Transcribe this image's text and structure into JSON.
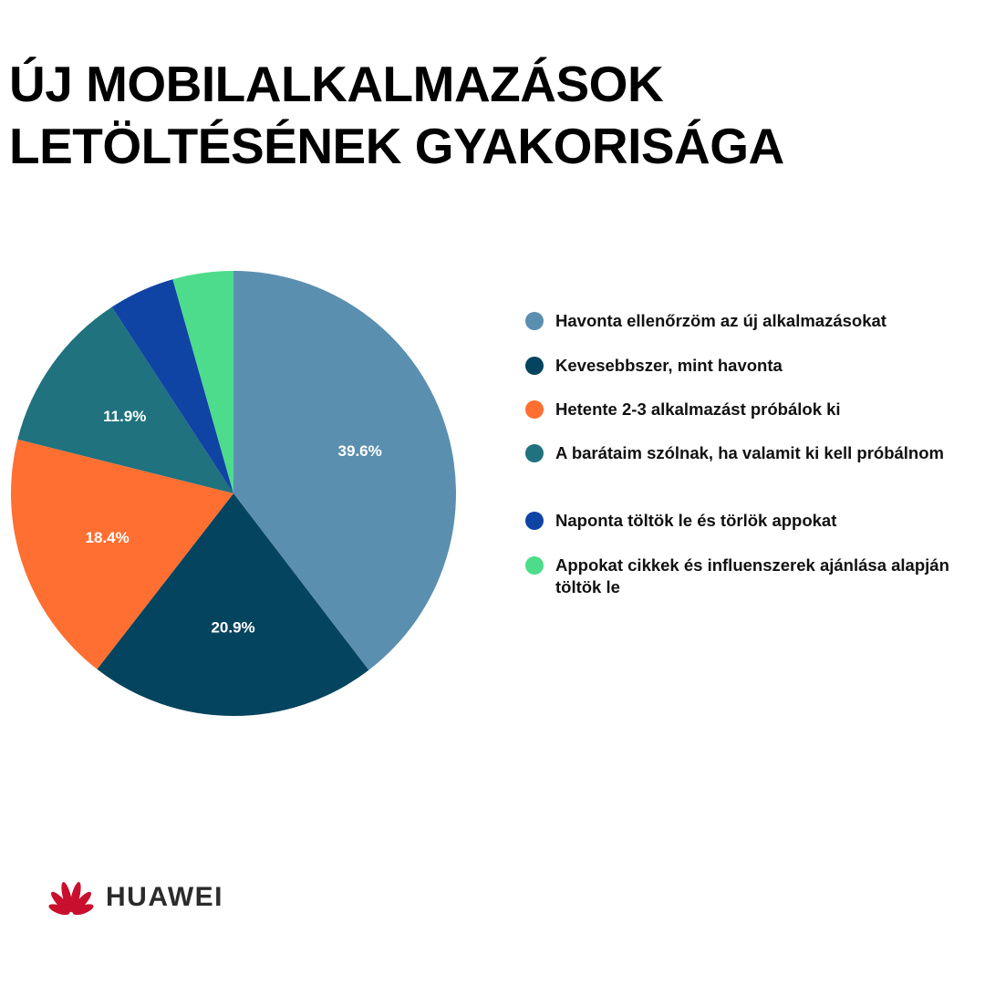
{
  "title_lines": [
    "ÚJ MOBILALKALMAZÁSOK",
    "LETÖLTÉSÉNEK GYAKORISÁGA"
  ],
  "chart_data": {
    "type": "pie",
    "title": "ÚJ MOBILALKALMAZÁSOK LETÖLTÉSÉNEK GYAKORISÁGA",
    "start": "top, clockwise",
    "legend_position": "right",
    "slices": [
      {
        "label": "Havonta ellenőrzöm az új alkalmazásokat",
        "value": 39.6,
        "display": "39.6%",
        "color": "#5b8fb0"
      },
      {
        "label": "Kevesebbszer, mint havonta",
        "value": 20.9,
        "display": "20.9%",
        "color": "#05445e"
      },
      {
        "label": "Hetente 2-3 alkalmazást próbálok ki",
        "value": 18.4,
        "display": "18.4%",
        "color": "#ff6f31"
      },
      {
        "label": "A barátaim szólnak, ha valamit ki kell próbálnom",
        "value": 11.9,
        "display": "11.9%",
        "color": "#1f727e"
      },
      {
        "label": "Naponta töltök le és törlök appokat",
        "value": 4.8,
        "display": "",
        "color": "#0f44a5"
      },
      {
        "label": "Appokat cikkek és influenszerek ajánlása alapján töltök le",
        "value": 4.4,
        "display": "",
        "color": "#4ddc8c"
      }
    ]
  },
  "logo": {
    "text": "HUAWEI",
    "color": "#c8102e"
  }
}
